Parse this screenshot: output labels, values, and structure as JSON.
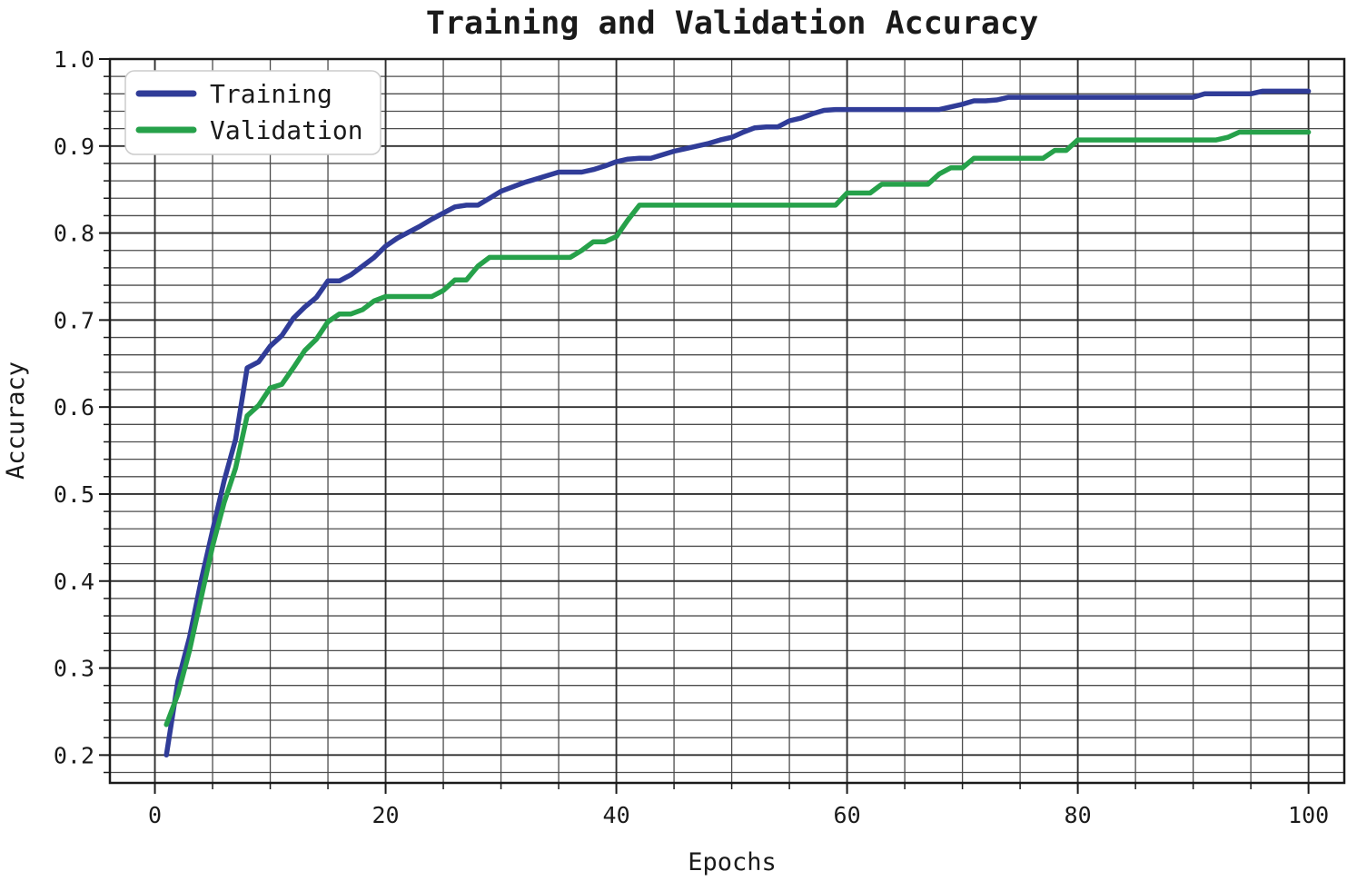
{
  "chart_data": {
    "type": "line",
    "title": "Training and Validation Accuracy",
    "xlabel": "Epochs",
    "ylabel": "Accuracy",
    "xlim": [
      -3.9,
      103.1
    ],
    "ylim": [
      0.168,
      1.0
    ],
    "x_ticks": [
      0,
      20,
      40,
      60,
      80,
      100
    ],
    "x_minor_step": 5,
    "y_tick_labels": [
      "0.2",
      "0.3",
      "0.4",
      "0.5",
      "0.6",
      "0.7",
      "0.8",
      "0.9",
      "1.0"
    ],
    "y_minor_step": 0.02,
    "grid": "major-and-minor",
    "legend": {
      "position": "upper-left"
    },
    "colors": {
      "grid_major": "#2f2f2f",
      "grid_minor": "#4d4d4d",
      "spine": "#1a1a1a",
      "legend_border": "#cccccc",
      "legend_bg": "#ffffff"
    },
    "series": [
      {
        "name": "Training",
        "color": "#303c98",
        "x_start": 1,
        "y": [
          0.2,
          0.285,
          0.335,
          0.4,
          0.458,
          0.515,
          0.563,
          0.645,
          0.652,
          0.67,
          0.682,
          0.702,
          0.715,
          0.726,
          0.745,
          0.745,
          0.752,
          0.762,
          0.772,
          0.785,
          0.794,
          0.801,
          0.808,
          0.816,
          0.823,
          0.83,
          0.832,
          0.832,
          0.84,
          0.848,
          0.853,
          0.858,
          0.862,
          0.866,
          0.87,
          0.87,
          0.87,
          0.873,
          0.877,
          0.882,
          0.885,
          0.886,
          0.886,
          0.89,
          0.894,
          0.897,
          0.9,
          0.903,
          0.907,
          0.91,
          0.916,
          0.921,
          0.922,
          0.922,
          0.929,
          0.932,
          0.937,
          0.941,
          0.942,
          0.942,
          0.942,
          0.942,
          0.942,
          0.942,
          0.942,
          0.942,
          0.942,
          0.942,
          0.945,
          0.948,
          0.952,
          0.952,
          0.953,
          0.956,
          0.956,
          0.956,
          0.956,
          0.956,
          0.956,
          0.956,
          0.956,
          0.956,
          0.956,
          0.956,
          0.956,
          0.956,
          0.956,
          0.956,
          0.956,
          0.956,
          0.96,
          0.96,
          0.96,
          0.96,
          0.96,
          0.963,
          0.963,
          0.963,
          0.963,
          0.963
        ]
      },
      {
        "name": "Validation",
        "color": "#26a14a",
        "x_start": 1,
        "y": [
          0.235,
          0.27,
          0.32,
          0.38,
          0.44,
          0.49,
          0.53,
          0.59,
          0.602,
          0.622,
          0.626,
          0.645,
          0.665,
          0.678,
          0.698,
          0.707,
          0.707,
          0.712,
          0.722,
          0.727,
          0.727,
          0.727,
          0.727,
          0.727,
          0.734,
          0.746,
          0.746,
          0.762,
          0.772,
          0.772,
          0.772,
          0.772,
          0.772,
          0.772,
          0.772,
          0.772,
          0.78,
          0.79,
          0.79,
          0.796,
          0.815,
          0.832,
          0.832,
          0.832,
          0.832,
          0.832,
          0.832,
          0.832,
          0.832,
          0.832,
          0.832,
          0.832,
          0.832,
          0.832,
          0.832,
          0.832,
          0.832,
          0.832,
          0.832,
          0.846,
          0.846,
          0.846,
          0.856,
          0.856,
          0.856,
          0.856,
          0.856,
          0.868,
          0.875,
          0.875,
          0.886,
          0.886,
          0.886,
          0.886,
          0.886,
          0.886,
          0.886,
          0.895,
          0.895,
          0.907,
          0.907,
          0.907,
          0.907,
          0.907,
          0.907,
          0.907,
          0.907,
          0.907,
          0.907,
          0.907,
          0.907,
          0.907,
          0.91,
          0.916,
          0.916,
          0.916,
          0.916,
          0.916,
          0.916,
          0.916
        ]
      }
    ]
  }
}
